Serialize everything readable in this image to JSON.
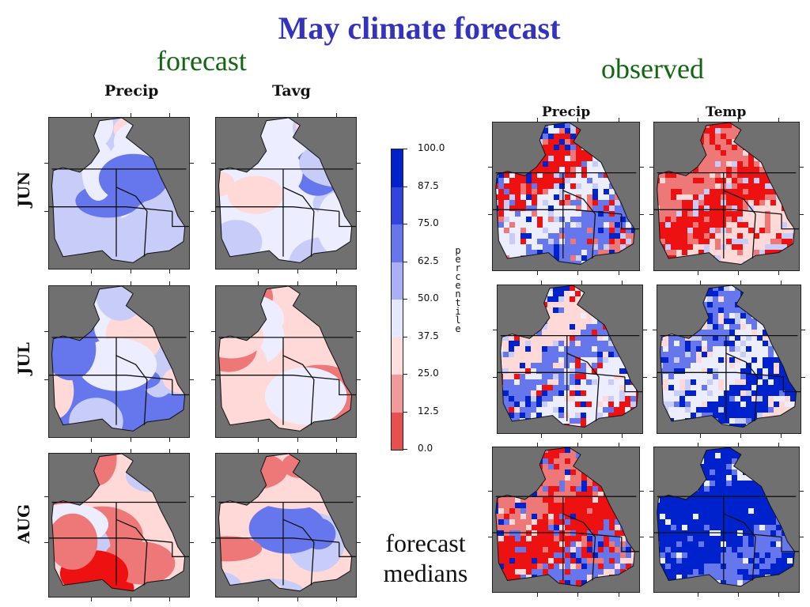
{
  "title": "May climate forecast",
  "sections": {
    "forecast": "forecast",
    "observed": "observed"
  },
  "forecast_columns": [
    "Precip",
    "Tavg"
  ],
  "observed_columns": [
    "Precip",
    "Temp"
  ],
  "rows": [
    "JUN",
    "JUL",
    "AUG"
  ],
  "legend": {
    "label": "percentile",
    "ticks": [
      "100.0",
      "87.5",
      "75.0",
      "62.5",
      "50.0",
      "37.5",
      "25.0",
      "12.5",
      "0.0"
    ],
    "colors": [
      "#0022cc",
      "#3344dd",
      "#6677ee",
      "#aab0f5",
      "#e6e8ff",
      "#ffdede",
      "#f09a9a",
      "#e85050",
      "#ee1111"
    ]
  },
  "bottom_label": {
    "line1": "forecast",
    "line2": "medians"
  },
  "panel_fill_colors": {
    "background": "#707070",
    "deep_blue": "#0022cc",
    "mid_blue": "#6677ee",
    "light_blue": "#c8ccf8",
    "pale": "#eceeff",
    "light_red": "#ffd8d8",
    "mid_red": "#ee7777",
    "deep_red": "#ee1111"
  }
}
